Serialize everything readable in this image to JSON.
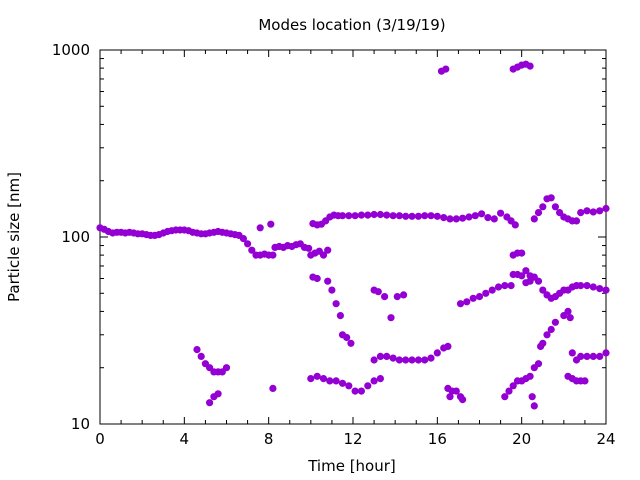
{
  "chart_data": {
    "type": "scatter",
    "title": "Modes location (3/19/19)",
    "xlabel": "Time [hour]",
    "ylabel": "Particle size [nm]",
    "xlim": [
      0,
      24
    ],
    "ylim": [
      10,
      1000
    ],
    "yscale": "log",
    "x_ticks": [
      0,
      4,
      8,
      12,
      16,
      20,
      24
    ],
    "x_tick_labels": [
      "0",
      "4",
      "8",
      "12",
      "16",
      "20",
      "24"
    ],
    "y_ticks": [
      10,
      100,
      1000
    ],
    "y_tick_labels": [
      "10",
      "100",
      "1000"
    ],
    "grid": false,
    "legend": "none",
    "marker_color": "#9400d3",
    "series": [
      {
        "values": [
          [
            0.0,
            112
          ],
          [
            0.2,
            110
          ],
          [
            0.4,
            107
          ],
          [
            0.6,
            105
          ],
          [
            0.8,
            106
          ],
          [
            1.0,
            106
          ],
          [
            1.2,
            105
          ],
          [
            1.4,
            106
          ],
          [
            1.6,
            105
          ],
          [
            1.8,
            104
          ],
          [
            2.0,
            104
          ],
          [
            2.2,
            103
          ],
          [
            2.4,
            102
          ],
          [
            2.6,
            102
          ],
          [
            2.8,
            103
          ],
          [
            3.0,
            105
          ],
          [
            3.2,
            107
          ],
          [
            3.4,
            108
          ],
          [
            3.6,
            109
          ],
          [
            3.8,
            109
          ],
          [
            4.0,
            109
          ],
          [
            4.2,
            108
          ],
          [
            4.4,
            106
          ],
          [
            4.6,
            105
          ],
          [
            4.8,
            104
          ],
          [
            5.0,
            104
          ],
          [
            5.2,
            105
          ],
          [
            5.4,
            106
          ],
          [
            5.6,
            107
          ],
          [
            5.8,
            106
          ],
          [
            6.0,
            105
          ],
          [
            6.2,
            104
          ],
          [
            6.4,
            103
          ],
          [
            6.6,
            102
          ],
          [
            6.8,
            98
          ],
          [
            7.0,
            92
          ],
          [
            7.2,
            85
          ],
          [
            7.4,
            80
          ],
          [
            7.6,
            80
          ],
          [
            7.8,
            81
          ],
          [
            8.0,
            80
          ],
          [
            8.2,
            80
          ],
          [
            7.6,
            112
          ],
          [
            8.1,
            117
          ],
          [
            8.3,
            88
          ],
          [
            8.5,
            89
          ],
          [
            8.7,
            88
          ],
          [
            8.9,
            90
          ],
          [
            9.1,
            89
          ],
          [
            9.3,
            91
          ],
          [
            9.5,
            92
          ],
          [
            9.7,
            88
          ],
          [
            9.9,
            87
          ],
          [
            10.1,
            118
          ],
          [
            10.3,
            116
          ],
          [
            10.5,
            117
          ],
          [
            10.7,
            122
          ],
          [
            10.9,
            128
          ],
          [
            11.1,
            131
          ],
          [
            11.3,
            130
          ],
          [
            11.5,
            130
          ],
          [
            11.8,
            130
          ],
          [
            12.1,
            130
          ],
          [
            12.4,
            131
          ],
          [
            12.7,
            131
          ],
          [
            13.0,
            132
          ],
          [
            13.3,
            132
          ],
          [
            13.6,
            131
          ],
          [
            13.9,
            130
          ],
          [
            14.2,
            130
          ],
          [
            14.5,
            129
          ],
          [
            14.8,
            129
          ],
          [
            15.1,
            129
          ],
          [
            15.4,
            130
          ],
          [
            15.7,
            130
          ],
          [
            16.0,
            129
          ],
          [
            16.3,
            127
          ],
          [
            16.6,
            125
          ],
          [
            16.9,
            125
          ],
          [
            17.2,
            126
          ],
          [
            17.5,
            128
          ],
          [
            17.8,
            130
          ],
          [
            18.1,
            133
          ],
          [
            18.4,
            127
          ],
          [
            18.7,
            125
          ],
          [
            19.0,
            134
          ],
          [
            19.3,
            128
          ],
          [
            19.5,
            122
          ],
          [
            19.7,
            116
          ],
          [
            20.6,
            125
          ],
          [
            20.8,
            135
          ],
          [
            21.0,
            145
          ],
          [
            21.2,
            160
          ],
          [
            21.4,
            162
          ],
          [
            21.6,
            145
          ],
          [
            21.8,
            135
          ],
          [
            22.0,
            128
          ],
          [
            22.2,
            125
          ],
          [
            22.4,
            122
          ],
          [
            22.6,
            122
          ],
          [
            22.8,
            135
          ],
          [
            23.1,
            138
          ],
          [
            23.4,
            136
          ],
          [
            23.7,
            138
          ],
          [
            24.0,
            142
          ],
          [
            10.0,
            80
          ],
          [
            10.2,
            82
          ],
          [
            10.4,
            84
          ],
          [
            10.6,
            80
          ],
          [
            10.8,
            85
          ],
          [
            10.1,
            61
          ],
          [
            10.3,
            60
          ],
          [
            10.8,
            58
          ],
          [
            11.0,
            52
          ],
          [
            11.2,
            44
          ],
          [
            11.4,
            38
          ],
          [
            11.5,
            30
          ],
          [
            11.7,
            29
          ],
          [
            11.9,
            27
          ],
          [
            13.0,
            52
          ],
          [
            13.2,
            51
          ],
          [
            13.5,
            48
          ],
          [
            13.8,
            37
          ],
          [
            14.1,
            48
          ],
          [
            14.4,
            49
          ],
          [
            17.1,
            44
          ],
          [
            17.4,
            45
          ],
          [
            17.7,
            47
          ],
          [
            18.0,
            48
          ],
          [
            18.3,
            50
          ],
          [
            18.6,
            52
          ],
          [
            18.9,
            54
          ],
          [
            19.2,
            55
          ],
          [
            19.5,
            55
          ],
          [
            19.6,
            80
          ],
          [
            19.8,
            82
          ],
          [
            20.0,
            82
          ],
          [
            19.6,
            63
          ],
          [
            19.8,
            63
          ],
          [
            20.0,
            62
          ],
          [
            20.2,
            66
          ],
          [
            20.4,
            62
          ],
          [
            20.6,
            61
          ],
          [
            20.8,
            58
          ],
          [
            21.0,
            52
          ],
          [
            21.2,
            49
          ],
          [
            21.4,
            47
          ],
          [
            21.6,
            48
          ],
          [
            21.8,
            50
          ],
          [
            22.0,
            52
          ],
          [
            22.2,
            52
          ],
          [
            22.4,
            54
          ],
          [
            22.6,
            55
          ],
          [
            22.8,
            55
          ],
          [
            23.1,
            55
          ],
          [
            23.4,
            54
          ],
          [
            23.7,
            53
          ],
          [
            24.0,
            52
          ],
          [
            20.2,
            57
          ],
          [
            20.4,
            58
          ],
          [
            20.9,
            26
          ],
          [
            21.0,
            27
          ],
          [
            21.2,
            30
          ],
          [
            21.4,
            32
          ],
          [
            21.6,
            35
          ],
          [
            22.0,
            38
          ],
          [
            22.2,
            40
          ],
          [
            22.3,
            37
          ],
          [
            4.6,
            25
          ],
          [
            4.8,
            23
          ],
          [
            5.0,
            21
          ],
          [
            5.2,
            20
          ],
          [
            5.4,
            19
          ],
          [
            5.6,
            19
          ],
          [
            5.8,
            19
          ],
          [
            6.0,
            20
          ],
          [
            5.2,
            13
          ],
          [
            5.4,
            14
          ],
          [
            5.6,
            14.5
          ],
          [
            8.2,
            15.5
          ],
          [
            10.0,
            17.5
          ],
          [
            10.3,
            18
          ],
          [
            10.6,
            17.5
          ],
          [
            10.9,
            17
          ],
          [
            11.2,
            17
          ],
          [
            11.5,
            16.5
          ],
          [
            11.8,
            16
          ],
          [
            12.1,
            15
          ],
          [
            12.4,
            15
          ],
          [
            12.7,
            16
          ],
          [
            13.0,
            17
          ],
          [
            13.3,
            17.5
          ],
          [
            13.0,
            22
          ],
          [
            13.3,
            23
          ],
          [
            13.6,
            23
          ],
          [
            13.9,
            22.5
          ],
          [
            14.2,
            22
          ],
          [
            14.5,
            22
          ],
          [
            14.8,
            22
          ],
          [
            15.1,
            22
          ],
          [
            15.4,
            22
          ],
          [
            15.7,
            22.5
          ],
          [
            16.0,
            24
          ],
          [
            16.3,
            25.5
          ],
          [
            16.5,
            26
          ],
          [
            16.5,
            15.5
          ],
          [
            16.7,
            15
          ],
          [
            16.9,
            15
          ],
          [
            17.1,
            14
          ],
          [
            17.2,
            13.5
          ],
          [
            16.6,
            14
          ],
          [
            19.2,
            14
          ],
          [
            19.4,
            15
          ],
          [
            19.6,
            16
          ],
          [
            19.8,
            17
          ],
          [
            20.0,
            17
          ],
          [
            20.2,
            17.5
          ],
          [
            20.4,
            18
          ],
          [
            20.6,
            20
          ],
          [
            20.8,
            21
          ],
          [
            20.5,
            14
          ],
          [
            20.6,
            12.5
          ],
          [
            22.2,
            18
          ],
          [
            22.4,
            17.5
          ],
          [
            22.6,
            17
          ],
          [
            22.8,
            17
          ],
          [
            23.0,
            17
          ],
          [
            22.4,
            24
          ],
          [
            22.6,
            22
          ],
          [
            22.8,
            23
          ],
          [
            23.1,
            23
          ],
          [
            23.4,
            23
          ],
          [
            23.7,
            23
          ],
          [
            24.0,
            24
          ],
          [
            16.2,
            770
          ],
          [
            16.4,
            790
          ],
          [
            19.6,
            790
          ],
          [
            19.8,
            810
          ],
          [
            20.0,
            830
          ],
          [
            20.2,
            840
          ],
          [
            20.4,
            820
          ]
        ]
      }
    ]
  }
}
